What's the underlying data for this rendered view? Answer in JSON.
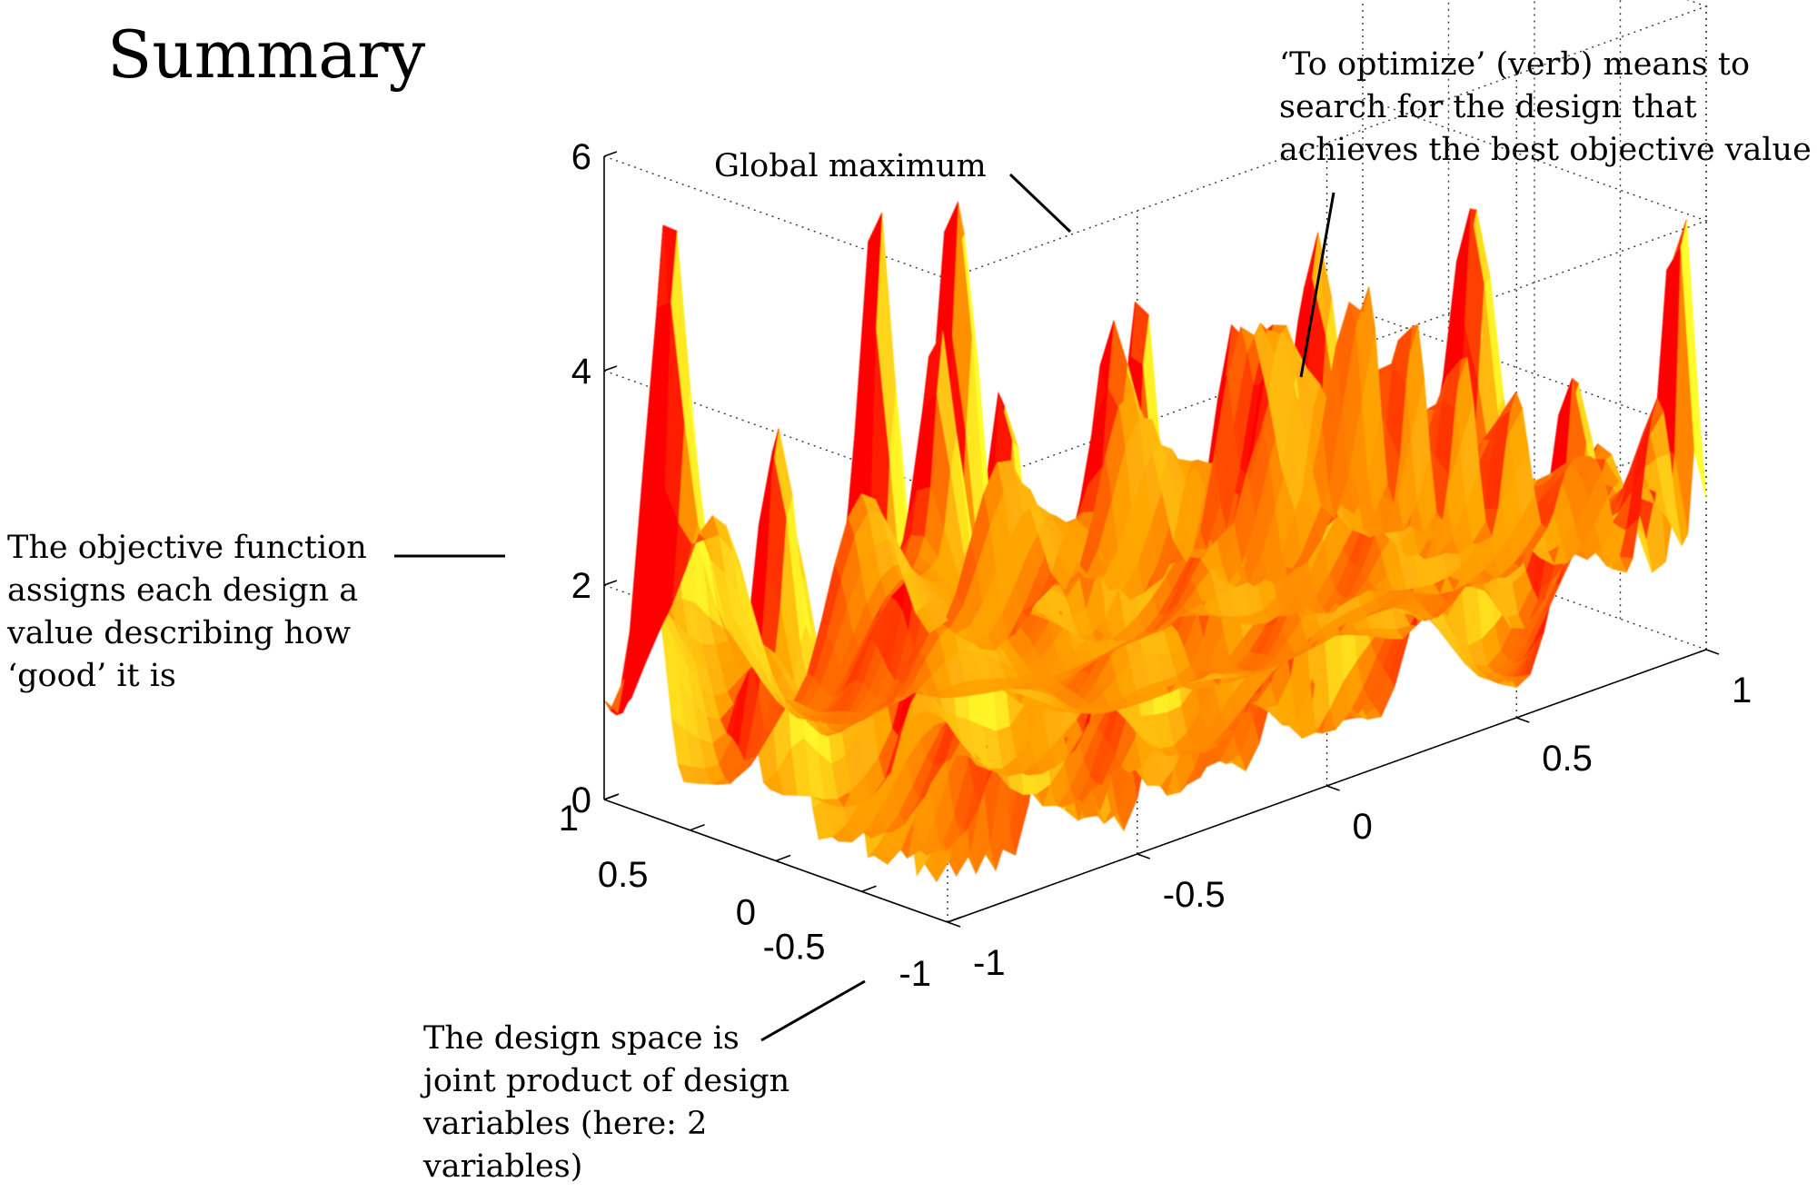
{
  "title": "Summary",
  "annotations": {
    "optimize": "‘To optimize’ (verb) means to search for the design that achieves the best objective value",
    "global_max": "Global maximum",
    "objective": "The objective function assigns each design a value describing how ‘good’ it is",
    "design_space": "The design space is joint product of design variables (here: 2 variables)"
  },
  "chart_data": {
    "type": "surface",
    "z_ticks": [
      "0",
      "2",
      "4",
      "6"
    ],
    "x_ticks": [
      "1",
      "0.5",
      "0",
      "-0.5",
      "-1"
    ],
    "y_ticks": [
      "-1",
      "-0.5",
      "0",
      "0.5",
      "1"
    ],
    "zlim": [
      0,
      6
    ],
    "xlim": [
      -1,
      1
    ],
    "ylim": [
      -1,
      1
    ],
    "grid": true,
    "colormap": [
      "#ff0000",
      "#ff8000",
      "#ffff00"
    ]
  }
}
